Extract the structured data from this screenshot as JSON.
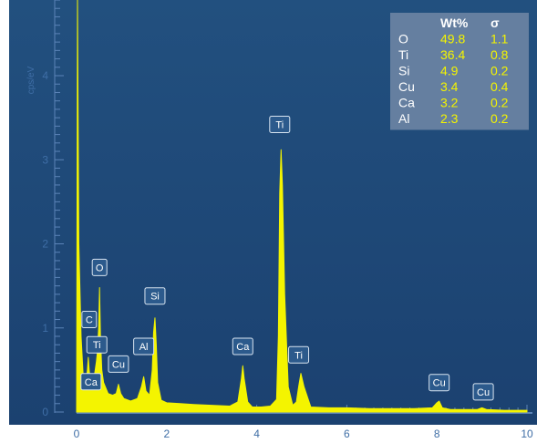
{
  "colors": {
    "background": "#1f4677",
    "spectrum": "#f4f400",
    "axis": "#5c84b8",
    "tick_text": "#3f6ea6",
    "label_box": "#2c5a8c",
    "table_bg": "#6b83a3"
  },
  "chart_data": {
    "type": "line",
    "title": "",
    "xlabel": "",
    "ylabel": "cps/eV",
    "xlim": [
      0,
      10
    ],
    "ylim": [
      0,
      4.9
    ],
    "x_ticks": [
      "0",
      "2",
      "4",
      "6",
      "8",
      "10"
    ],
    "y_ticks": [
      "0",
      "1",
      "2",
      "3",
      "4"
    ],
    "grid": false,
    "series": [
      {
        "x": [
          0.0,
          0.02,
          0.05,
          0.1,
          0.15,
          0.2,
          0.24,
          0.26,
          0.28,
          0.32,
          0.36,
          0.4,
          0.44,
          0.46,
          0.49,
          0.51,
          0.53,
          0.56,
          0.6,
          0.7,
          0.8,
          0.88,
          0.93,
          0.98,
          1.05,
          1.2,
          1.35,
          1.44,
          1.49,
          1.54,
          1.62,
          1.68,
          1.71,
          1.74,
          1.77,
          1.8,
          1.88,
          2.0,
          2.3,
          2.6,
          3.0,
          3.4,
          3.58,
          3.66,
          3.69,
          3.72,
          3.8,
          3.9,
          4.1,
          4.3,
          4.44,
          4.48,
          4.51,
          4.54,
          4.57,
          4.62,
          4.7,
          4.8,
          4.88,
          4.93,
          4.98,
          5.05,
          5.2,
          5.6,
          6.0,
          6.5,
          7.0,
          7.5,
          7.9,
          8.0,
          8.05,
          8.12,
          8.3,
          8.6,
          8.9,
          9.0,
          9.1,
          9.5,
          10.0
        ],
        "y": [
          0.0,
          4.9,
          2.0,
          0.9,
          0.4,
          0.3,
          0.5,
          0.65,
          0.5,
          0.3,
          0.4,
          0.45,
          0.6,
          0.7,
          1.0,
          1.48,
          0.9,
          0.5,
          0.35,
          0.22,
          0.2,
          0.22,
          0.33,
          0.22,
          0.16,
          0.13,
          0.16,
          0.3,
          0.42,
          0.25,
          0.2,
          0.5,
          0.95,
          1.12,
          0.8,
          0.35,
          0.14,
          0.11,
          0.1,
          0.09,
          0.08,
          0.07,
          0.12,
          0.4,
          0.55,
          0.4,
          0.12,
          0.06,
          0.06,
          0.07,
          0.15,
          0.9,
          2.6,
          3.12,
          2.7,
          1.4,
          0.3,
          0.08,
          0.12,
          0.3,
          0.46,
          0.3,
          0.06,
          0.05,
          0.05,
          0.04,
          0.04,
          0.04,
          0.05,
          0.11,
          0.13,
          0.05,
          0.03,
          0.03,
          0.03,
          0.05,
          0.03,
          0.02,
          0.02
        ]
      }
    ],
    "peak_labels": [
      {
        "text": "C",
        "x": 0.28,
        "y": 1.1
      },
      {
        "text": "O",
        "x": 0.51,
        "y": 1.72
      },
      {
        "text": "Ti",
        "x": 0.45,
        "y": 0.8
      },
      {
        "text": "Ca",
        "x": 0.32,
        "y": 0.36
      },
      {
        "text": "Cu",
        "x": 0.93,
        "y": 0.57
      },
      {
        "text": "Al",
        "x": 1.49,
        "y": 0.78
      },
      {
        "text": "Si",
        "x": 1.74,
        "y": 1.38
      },
      {
        "text": "Ca",
        "x": 3.69,
        "y": 0.78
      },
      {
        "text": "Ti",
        "x": 4.51,
        "y": 3.42
      },
      {
        "text": "Ti",
        "x": 4.93,
        "y": 0.68
      },
      {
        "text": "Cu",
        "x": 8.05,
        "y": 0.35
      },
      {
        "text": "Cu",
        "x": 9.03,
        "y": 0.24
      }
    ],
    "table": {
      "headers": [
        "",
        "Wt%",
        "σ"
      ],
      "rows": [
        [
          "O",
          "49.8",
          "1.1"
        ],
        [
          "Ti",
          "36.4",
          "0.8"
        ],
        [
          "Si",
          "4.9",
          "0.2"
        ],
        [
          "Cu",
          "3.4",
          "0.4"
        ],
        [
          "Ca",
          "3.2",
          "0.2"
        ],
        [
          "Al",
          "2.3",
          "0.2"
        ]
      ]
    }
  }
}
